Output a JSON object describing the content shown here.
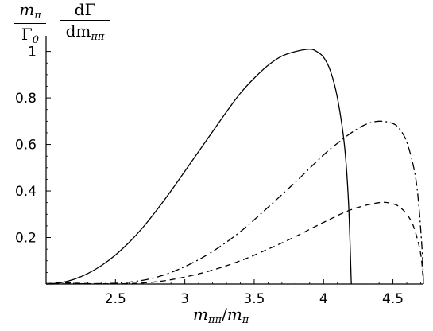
{
  "ylabel": {
    "prefactor": {
      "numerator": "m",
      "numerator_sub": "π",
      "denominator": "Γ",
      "denominator_sub": "0"
    },
    "derivative": {
      "numerator": "dΓ",
      "denominator": "dm",
      "denominator_sub": "ππ"
    }
  },
  "xlabel": {
    "numerator": "m",
    "numerator_sub": "ππ",
    "slash": "/",
    "denominator": "m",
    "denominator_sub": "π"
  },
  "chart_data": {
    "type": "line",
    "title": "",
    "xlim": [
      2.0,
      4.72
    ],
    "ylim": [
      0,
      1.05
    ],
    "xticks": [
      2.5,
      3,
      3.5,
      4,
      4.5
    ],
    "xtick_labels": [
      "2.5",
      "3",
      "3.5",
      "4",
      "4.5"
    ],
    "yticks": [
      0.2,
      0.4,
      0.6,
      0.8,
      1.0
    ],
    "ytick_labels": [
      "0.2",
      "0.4",
      "0.6",
      "0.8",
      "1"
    ],
    "grid": false,
    "legend": "none",
    "series": [
      {
        "style": "solid",
        "x": [
          2.0,
          2.1,
          2.2,
          2.3,
          2.4,
          2.5,
          2.6,
          2.7,
          2.8,
          2.9,
          3.0,
          3.1,
          3.2,
          3.3,
          3.4,
          3.5,
          3.6,
          3.7,
          3.8,
          3.9,
          3.95,
          4.0,
          4.05,
          4.1,
          4.15,
          4.18,
          4.2
        ],
        "y": [
          0.0,
          0.005,
          0.02,
          0.045,
          0.08,
          0.125,
          0.18,
          0.245,
          0.32,
          0.4,
          0.485,
          0.57,
          0.655,
          0.74,
          0.82,
          0.885,
          0.94,
          0.98,
          1.0,
          1.01,
          1.0,
          0.975,
          0.915,
          0.8,
          0.6,
          0.35,
          0.0
        ]
      },
      {
        "style": "dashdot",
        "x": [
          2.0,
          2.4,
          2.6,
          2.8,
          3.0,
          3.2,
          3.4,
          3.6,
          3.8,
          4.0,
          4.1,
          4.2,
          4.3,
          4.4,
          4.5,
          4.55,
          4.6,
          4.65,
          4.68,
          4.71,
          4.72
        ],
        "y": [
          0.0,
          0.002,
          0.008,
          0.03,
          0.075,
          0.14,
          0.225,
          0.33,
          0.44,
          0.555,
          0.605,
          0.65,
          0.685,
          0.7,
          0.69,
          0.665,
          0.61,
          0.5,
          0.38,
          0.15,
          0.0
        ]
      },
      {
        "style": "dashed",
        "x": [
          2.0,
          2.1,
          2.2,
          2.3,
          2.4,
          2.6,
          2.8,
          3.0,
          3.2,
          3.4,
          3.6,
          3.8,
          4.0,
          4.2,
          4.4,
          4.5,
          4.55,
          4.6,
          4.65,
          4.7,
          4.72
        ],
        "y": [
          0.008,
          0.006,
          0.004,
          0.002,
          0.001,
          0.002,
          0.01,
          0.03,
          0.06,
          0.1,
          0.15,
          0.205,
          0.265,
          0.32,
          0.35,
          0.345,
          0.33,
          0.3,
          0.245,
          0.13,
          0.0
        ]
      }
    ]
  }
}
